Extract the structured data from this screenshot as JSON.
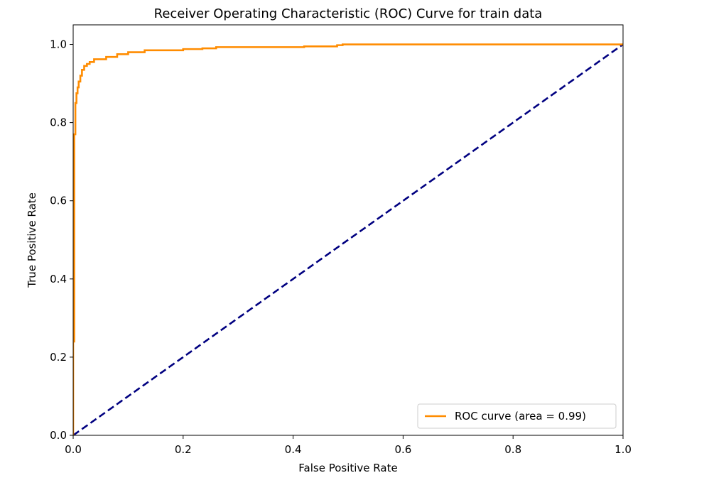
{
  "chart_data": {
    "type": "line",
    "title": "Receiver Operating Characteristic (ROC) Curve for train data",
    "xlabel": "False Positive Rate",
    "ylabel": "True Positive Rate",
    "xlim": [
      0.0,
      1.0
    ],
    "ylim": [
      0.0,
      1.05
    ],
    "x_ticks": [
      0.0,
      0.2,
      0.4,
      0.6,
      0.8,
      1.0
    ],
    "x_tick_labels": [
      "0.0",
      "0.2",
      "0.4",
      "0.6",
      "0.8",
      "1.0"
    ],
    "y_ticks": [
      0.0,
      0.2,
      0.4,
      0.6,
      0.8,
      1.0
    ],
    "y_tick_labels": [
      "0.0",
      "0.2",
      "0.4",
      "0.6",
      "0.8",
      "1.0"
    ],
    "grid": false,
    "legend": {
      "placement": "lower-right",
      "entries": [
        "ROC curve (area = 0.99)"
      ]
    },
    "series": [
      {
        "name": "ROC curve (area = 0.99)",
        "color": "#ff8c00",
        "style": "solid",
        "x": [
          0.0,
          0.0,
          0.002,
          0.002,
          0.004,
          0.004,
          0.006,
          0.006,
          0.008,
          0.008,
          0.01,
          0.01,
          0.013,
          0.013,
          0.016,
          0.016,
          0.02,
          0.02,
          0.025,
          0.025,
          0.03,
          0.03,
          0.038,
          0.038,
          0.06,
          0.06,
          0.08,
          0.08,
          0.1,
          0.1,
          0.13,
          0.13,
          0.2,
          0.2,
          0.235,
          0.235,
          0.26,
          0.26,
          0.42,
          0.42,
          0.48,
          0.48,
          0.49,
          0.49,
          1.0
        ],
        "y": [
          0.0,
          0.24,
          0.24,
          0.77,
          0.77,
          0.85,
          0.85,
          0.875,
          0.875,
          0.89,
          0.89,
          0.905,
          0.905,
          0.92,
          0.92,
          0.935,
          0.935,
          0.945,
          0.945,
          0.95,
          0.95,
          0.955,
          0.955,
          0.962,
          0.962,
          0.968,
          0.968,
          0.975,
          0.975,
          0.98,
          0.98,
          0.985,
          0.985,
          0.988,
          0.988,
          0.99,
          0.99,
          0.993,
          0.993,
          0.995,
          0.995,
          0.998,
          0.998,
          1.0,
          1.0
        ]
      },
      {
        "name": "",
        "color": "#000080",
        "style": "dashed",
        "x": [
          0.0,
          1.0
        ],
        "y": [
          0.0,
          1.0
        ]
      }
    ]
  }
}
